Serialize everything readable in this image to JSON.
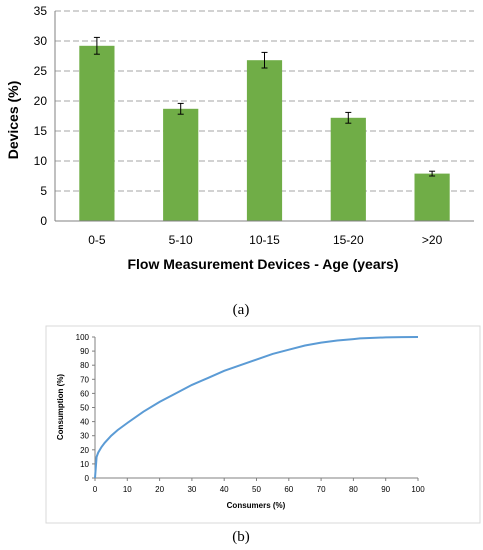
{
  "chart_data": [
    {
      "type": "bar",
      "panel_label": "(a)",
      "xlabel": "Flow Measurement Devices - Age (years)",
      "ylabel": "Devices (%)",
      "categories": [
        "0-5",
        "5-10",
        "10-15",
        "15-20",
        ">20"
      ],
      "values": [
        29.2,
        18.7,
        26.8,
        17.2,
        7.9
      ],
      "errors": [
        1.4,
        0.9,
        1.3,
        0.9,
        0.4
      ],
      "ylim": [
        0,
        35
      ],
      "yticks": [
        0,
        5,
        10,
        15,
        20,
        25,
        30,
        35
      ],
      "grid": "dashed horizontal",
      "bar_color": "#70ad47"
    },
    {
      "type": "line",
      "panel_label": "(b)",
      "xlabel": "Consumers (%)",
      "ylabel": "Consumption (%)",
      "x": [
        0,
        0.5,
        1,
        2,
        3,
        5,
        7,
        10,
        15,
        20,
        25,
        30,
        35,
        40,
        45,
        50,
        55,
        60,
        65,
        70,
        75,
        80,
        82,
        85,
        90,
        95,
        100
      ],
      "y": [
        0,
        15,
        18,
        22,
        25,
        30,
        34,
        39,
        47,
        54,
        60,
        66,
        71,
        76,
        80,
        84,
        88,
        91,
        94,
        96,
        97.5,
        98.5,
        99,
        99.3,
        99.7,
        99.9,
        100
      ],
      "xlim": [
        0,
        100
      ],
      "ylim": [
        0,
        100
      ],
      "xticks": [
        0,
        10,
        20,
        30,
        40,
        50,
        60,
        70,
        80,
        90,
        100
      ],
      "yticks": [
        0,
        10,
        20,
        30,
        40,
        50,
        60,
        70,
        80,
        90,
        100
      ],
      "line_color": "#5b9bd5"
    }
  ]
}
